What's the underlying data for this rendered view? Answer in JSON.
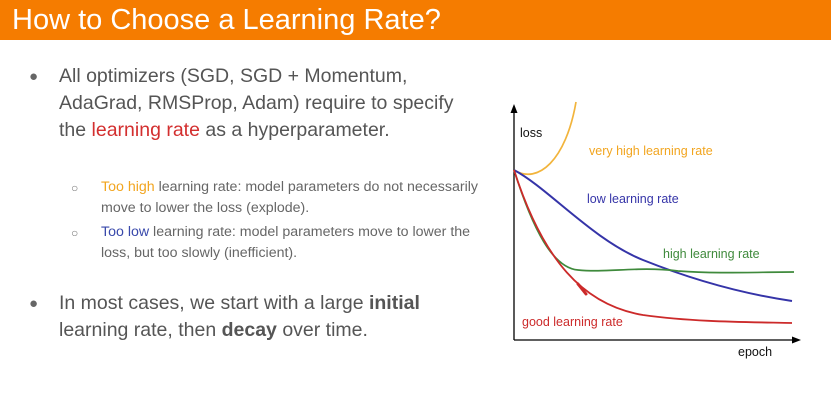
{
  "title": "How to Choose a Learning Rate?",
  "bullets": {
    "b1": {
      "pre": "All optimizers (SGD, SGD + Momentum, AdaGrad, RMSProp, Adam) require to specify the ",
      "highlight": "learning rate",
      "post": " as a hyperparameter."
    },
    "sub1": {
      "highlight": "Too high",
      "post": " learning rate: model parameters do not necessarily move to lower the loss (explode)."
    },
    "sub2": {
      "highlight": "Too low",
      "post": " learning rate: model parameters move to lower the loss, but too slowly (inefficient)."
    },
    "b2": {
      "pre": "In most cases, we start with a large ",
      "bold1": "initial",
      "mid": " learning rate, then ",
      "bold2": "decay",
      "post": " over time."
    }
  },
  "figure": {
    "ylabel": "loss",
    "xlabel": "epoch",
    "curves": {
      "very_high": "very high learning rate",
      "low": "low learning rate",
      "high": "high learning rate",
      "good": "good learning rate"
    }
  },
  "colors": {
    "title_bar": "#f57c00",
    "very_high": "#f2b43c",
    "low": "#3534a8",
    "high": "#3f8a3c",
    "good": "#cc2a2a"
  }
}
